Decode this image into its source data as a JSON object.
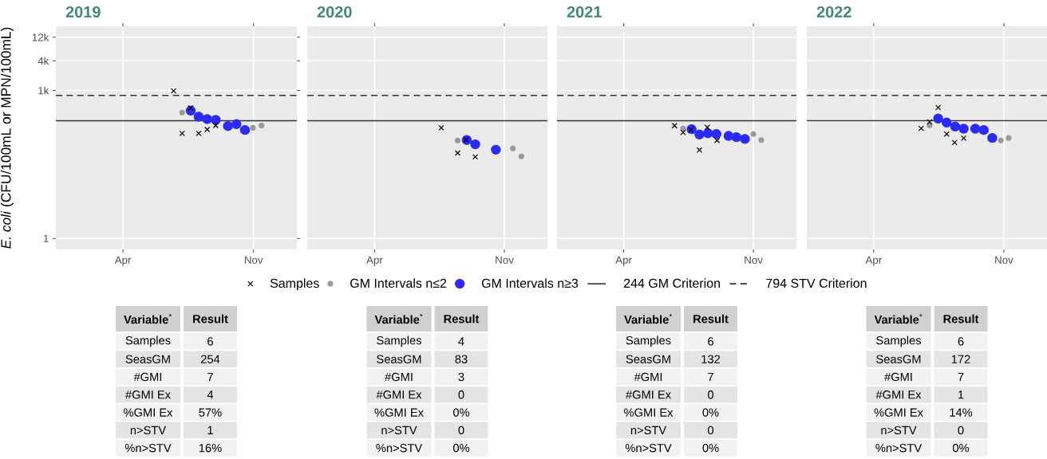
{
  "chart_data": [
    {
      "type": "scatter",
      "title": "2019",
      "ylabel": "*E. coli* (CFU/100mL or MPN/100mL)",
      "log": "y",
      "grid": true,
      "legend": "bottom",
      "xlim": [
        "2018-12-12",
        "2020-01-11"
      ],
      "xticks": [
        {
          "value": "2019-04-01",
          "label": "Apr"
        },
        {
          "value": "2019-11-01",
          "label": "Nov"
        }
      ],
      "ylim": [
        0.6,
        20000
      ],
      "yticks": [
        1,
        {
          "value": 1000,
          "label": "1k"
        },
        {
          "value": 4000,
          "label": "4k"
        },
        {
          "value": 12000,
          "label": "12k"
        }
      ],
      "series": [
        {
          "name": "Samples",
          "color": "#000000",
          "marker": "cross",
          "x": [
            "2019-06-23",
            "2019-07-21",
            "2019-07-07",
            "2019-08-03",
            "2019-08-17",
            "2019-08-31"
          ],
          "values": [
            980,
            442,
            135,
            135,
            162,
            195
          ]
        },
        {
          "name": "GM Intervals n≤2",
          "color": "#999999",
          "marker": "circle",
          "x": [
            "2019-07-07",
            "2019-10-31",
            "2019-11-14"
          ],
          "values": [
            357,
            175,
            195
          ]
        },
        {
          "name": "GM Intervals n≥3",
          "color": "#2b2bf5",
          "marker": "circle",
          "x": [
            "2019-07-21",
            "2019-08-03",
            "2019-08-17",
            "2019-08-31",
            "2019-09-20",
            "2019-10-04",
            "2019-10-18"
          ],
          "values": [
            391,
            294,
            263,
            253,
            190,
            208,
            158
          ]
        }
      ],
      "ref_lines": [
        {
          "axis": "y",
          "value": 244,
          "label": "244 GM Criterion",
          "color": "#333333",
          "line_style": "solid"
        },
        {
          "axis": "y",
          "value": 794,
          "label": "794 STV Criterion",
          "color": "#333333",
          "line_style": "dashed"
        }
      ],
      "annotations": [
        "**Variable**$^{*}$",
        "**Result**",
        "Samples",
        "6",
        "SeasGM",
        "254",
        "#GMI",
        "7",
        "#GMI Ex",
        "4",
        "%GMI Ex",
        "57%",
        "n>STV",
        "1",
        "%n>STV",
        "16%"
      ]
    },
    {
      "type": "scatter",
      "title": "2020",
      "log": "y",
      "grid": true,
      "tick_labels": "x",
      "xlim": [
        "2019-12-12",
        "2021-01-11"
      ],
      "xticks": [
        {
          "value": "2020-04-01",
          "label": "Apr"
        },
        {
          "value": "2020-11-01",
          "label": "Nov"
        }
      ],
      "ylim": [
        0.6,
        20000
      ],
      "yticks": [
        1,
        1000,
        4000,
        12000
      ],
      "series": [
        {
          "color": "#000000",
          "marker": "cross",
          "x": [
            "2020-07-20",
            "2020-08-30",
            "2020-08-16",
            "2020-09-14"
          ],
          "values": [
            175,
            100,
            54,
            45
          ]
        },
        {
          "color": "#999999",
          "marker": "circle",
          "x": [
            "2020-08-16",
            "2020-11-15",
            "2020-11-29"
          ],
          "values": [
            97,
            67,
            46
          ]
        },
        {
          "color": "#2b2bf5",
          "marker": "circle",
          "x": [
            "2020-08-31",
            "2020-09-14",
            "2020-10-18"
          ],
          "values": [
            99,
            81,
            63
          ]
        }
      ],
      "ref_lines": [
        {
          "axis": "y",
          "value": 244,
          "color": "#333333",
          "line_style": "solid"
        },
        {
          "axis": "y",
          "value": 794,
          "color": "#333333",
          "line_style": "dashed"
        }
      ],
      "annotations": [
        "**Variable**$^{*}$",
        "**Result**",
        "Samples",
        "4",
        "SeasGM",
        "83",
        "#GMI",
        "3",
        "#GMI Ex",
        "0",
        "%GMI Ex",
        "0%",
        "n>STV",
        "0",
        "%n>STV",
        "0%"
      ]
    },
    {
      "type": "scatter",
      "title": "2021",
      "log": "y",
      "grid": true,
      "tick_labels": "x",
      "xlim": [
        "2020-12-12",
        "2022-01-11"
      ],
      "xticks": [
        {
          "value": "2021-04-01",
          "label": "Apr"
        },
        {
          "value": "2021-11-01",
          "label": "Nov"
        }
      ],
      "ylim": [
        0.6,
        20000
      ],
      "yticks": [
        1,
        1000,
        4000,
        12000
      ],
      "series": [
        {
          "color": "#000000",
          "marker": "cross",
          "x": [
            "2021-06-24",
            "2021-07-08",
            "2021-07-21",
            "2021-08-17",
            "2021-09-02",
            "2021-08-04"
          ],
          "values": [
            193,
            141,
            160,
            179,
            97,
            62
          ]
        },
        {
          "color": "#999999",
          "marker": "circle",
          "x": [
            "2021-07-08",
            "2021-11-01",
            "2021-11-14"
          ],
          "values": [
            170,
            131,
            99
          ]
        },
        {
          "color": "#2b2bf5",
          "marker": "circle",
          "x": [
            "2021-07-22",
            "2021-08-04",
            "2021-08-18",
            "2021-09-01",
            "2021-09-21",
            "2021-10-04",
            "2021-10-18"
          ],
          "values": [
            164,
            128,
            136,
            131,
            120,
            113,
            104
          ]
        }
      ],
      "ref_lines": [
        {
          "axis": "y",
          "value": 244,
          "color": "#333333",
          "line_style": "solid"
        },
        {
          "axis": "y",
          "value": 794,
          "color": "#333333",
          "line_style": "dashed"
        }
      ],
      "annotations": [
        "**Variable**$^{*}$",
        "**Result**",
        "Samples",
        "6",
        "SeasGM",
        "132",
        "#GMI",
        "7",
        "#GMI Ex",
        "0",
        "%GMI Ex",
        "0%",
        "n>STV",
        "0",
        "%n>STV",
        "0%"
      ]
    },
    {
      "type": "scatter",
      "title": "2022",
      "log": "y",
      "grid": true,
      "tick_labels": "x",
      "xlim": [
        "2021-12-12",
        "2023-01-11"
      ],
      "xticks": [
        {
          "value": "2022-04-01",
          "label": "Apr"
        },
        {
          "value": "2022-11-01",
          "label": "Nov"
        }
      ],
      "ylim": [
        0.6,
        20000
      ],
      "yticks": [
        1,
        1000,
        4000,
        12000
      ],
      "series": [
        {
          "color": "#000000",
          "marker": "cross",
          "x": [
            "2022-07-16",
            "2022-06-18",
            "2022-07-02",
            "2022-07-30",
            "2022-08-12",
            "2022-08-27"
          ],
          "values": [
            453,
            170,
            232,
            131,
            88,
            108
          ]
        },
        {
          "color": "#999999",
          "marker": "circle",
          "x": [
            "2022-07-02",
            "2022-10-27",
            "2022-11-09"
          ],
          "values": [
            197,
            97,
            109
          ]
        },
        {
          "color": "#2b2bf5",
          "marker": "circle",
          "x": [
            "2022-07-16",
            "2022-07-30",
            "2022-08-13",
            "2022-08-27",
            "2022-09-15",
            "2022-09-29",
            "2022-10-13"
          ],
          "values": [
            270,
            224,
            186,
            168,
            168,
            158,
            109
          ]
        }
      ],
      "ref_lines": [
        {
          "axis": "y",
          "value": 244,
          "color": "#333333",
          "line_style": "solid"
        },
        {
          "axis": "y",
          "value": 794,
          "color": "#333333",
          "line_style": "dashed"
        }
      ],
      "annotations": [
        "**Variable**$^{*}$",
        "**Result**",
        "Samples",
        "6",
        "SeasGM",
        "172",
        "#GMI",
        "7",
        "#GMI Ex",
        "1",
        "%GMI Ex",
        "14%",
        "n>STV",
        "0",
        "%n>STV",
        "0%"
      ]
    }
  ]
}
